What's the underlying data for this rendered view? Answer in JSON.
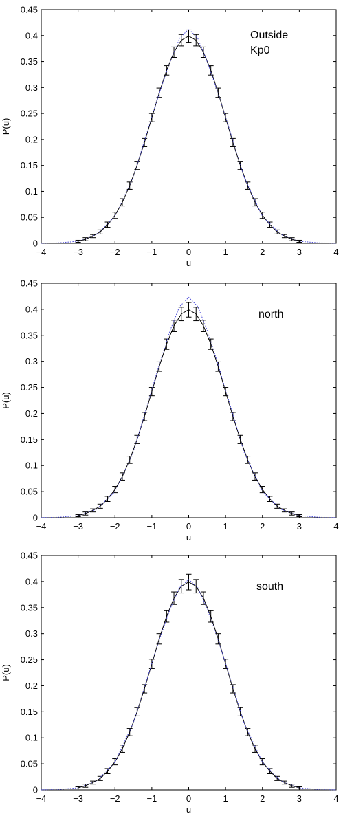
{
  "chart_data": [
    {
      "type": "line",
      "xlabel": "u",
      "ylabel": "P(u)",
      "xlim": [
        -4,
        4
      ],
      "ylim": [
        0,
        0.45
      ],
      "xticks": [
        "-4",
        "-3",
        "-2",
        "-1",
        "0",
        "1",
        "2",
        "3",
        "4"
      ],
      "yticks": [
        "0",
        "0.05",
        "0.1",
        "0.15",
        "0.2",
        "0.25",
        "0.3",
        "0.35",
        "0.4",
        "0.45"
      ],
      "annotation": [
        "Outside",
        "Kp0"
      ],
      "grid": false,
      "series": [
        {
          "style": "solid-with-errorbars",
          "x": [
            -3,
            -2.8,
            -2.6,
            -2.4,
            -2.2,
            -2,
            -1.8,
            -1.6,
            -1.4,
            -1.2,
            -1,
            -0.8,
            -0.6,
            -0.4,
            -0.2,
            0,
            0.2,
            0.4,
            0.6,
            0.8,
            1,
            1.2,
            1.4,
            1.6,
            1.8,
            2,
            2.2,
            2.4,
            2.6,
            2.8,
            3
          ],
          "y": [
            0.004,
            0.008,
            0.014,
            0.022,
            0.036,
            0.054,
            0.079,
            0.111,
            0.15,
            0.194,
            0.242,
            0.29,
            0.333,
            0.368,
            0.391,
            0.399,
            0.391,
            0.368,
            0.333,
            0.29,
            0.242,
            0.194,
            0.15,
            0.111,
            0.079,
            0.054,
            0.036,
            0.022,
            0.014,
            0.008,
            0.004
          ],
          "err": [
            0.002,
            0.003,
            0.003,
            0.004,
            0.005,
            0.006,
            0.007,
            0.007,
            0.008,
            0.008,
            0.008,
            0.009,
            0.009,
            0.01,
            0.011,
            0.012,
            0.011,
            0.01,
            0.009,
            0.009,
            0.008,
            0.008,
            0.008,
            0.007,
            0.007,
            0.006,
            0.005,
            0.004,
            0.003,
            0.003,
            0.002
          ]
        },
        {
          "style": "dotted",
          "x": [
            -4,
            -3.5,
            -3,
            -2.5,
            -2,
            -1.5,
            -1,
            -0.75,
            -0.5,
            -0.25,
            0,
            0.25,
            0.5,
            0.75,
            1,
            1.5,
            2,
            2.5,
            3,
            3.5,
            4
          ],
          "y": [
            0.0001,
            0.001,
            0.004,
            0.017,
            0.052,
            0.128,
            0.244,
            0.299,
            0.35,
            0.394,
            0.413,
            0.394,
            0.35,
            0.299,
            0.244,
            0.128,
            0.052,
            0.017,
            0.004,
            0.001,
            0.0001
          ]
        }
      ]
    },
    {
      "type": "line",
      "xlabel": "u",
      "ylabel": "P(u)",
      "xlim": [
        -4,
        4
      ],
      "ylim": [
        0,
        0.45
      ],
      "xticks": [
        "-4",
        "-3",
        "-2",
        "-1",
        "0",
        "1",
        "2",
        "3",
        "4"
      ],
      "yticks": [
        "0",
        "0.05",
        "0.1",
        "0.15",
        "0.2",
        "0.25",
        "0.3",
        "0.35",
        "0.4",
        "0.45"
      ],
      "annotation": [
        "north"
      ],
      "grid": false,
      "series": [
        {
          "style": "solid-with-errorbars",
          "x": [
            -3,
            -2.8,
            -2.6,
            -2.4,
            -2.2,
            -2,
            -1.8,
            -1.6,
            -1.4,
            -1.2,
            -1,
            -0.8,
            -0.6,
            -0.4,
            -0.2,
            0,
            0.2,
            0.4,
            0.6,
            0.8,
            1,
            1.2,
            1.4,
            1.6,
            1.8,
            2,
            2.2,
            2.4,
            2.6,
            2.8,
            3
          ],
          "y": [
            0.004,
            0.008,
            0.014,
            0.022,
            0.036,
            0.054,
            0.079,
            0.111,
            0.15,
            0.194,
            0.242,
            0.29,
            0.333,
            0.368,
            0.391,
            0.399,
            0.391,
            0.368,
            0.333,
            0.29,
            0.242,
            0.194,
            0.15,
            0.111,
            0.079,
            0.054,
            0.036,
            0.022,
            0.014,
            0.008,
            0.004
          ],
          "err": [
            0.002,
            0.003,
            0.003,
            0.004,
            0.005,
            0.006,
            0.007,
            0.007,
            0.008,
            0.008,
            0.008,
            0.009,
            0.01,
            0.011,
            0.013,
            0.014,
            0.013,
            0.011,
            0.01,
            0.009,
            0.008,
            0.008,
            0.008,
            0.007,
            0.007,
            0.006,
            0.005,
            0.004,
            0.003,
            0.003,
            0.002
          ]
        },
        {
          "style": "dotted",
          "x": [
            -4,
            -3.5,
            -3,
            -2.5,
            -2,
            -1.5,
            -1,
            -0.75,
            -0.5,
            -0.25,
            0,
            0.25,
            0.5,
            0.75,
            1,
            1.5,
            2,
            2.5,
            3,
            3.5,
            4
          ],
          "y": [
            0.0001,
            0.001,
            0.004,
            0.016,
            0.05,
            0.126,
            0.246,
            0.305,
            0.36,
            0.405,
            0.423,
            0.405,
            0.36,
            0.305,
            0.246,
            0.126,
            0.05,
            0.016,
            0.004,
            0.001,
            0.0001
          ]
        }
      ]
    },
    {
      "type": "line",
      "xlabel": "u",
      "ylabel": "P(u)",
      "xlim": [
        -4,
        4
      ],
      "ylim": [
        0,
        0.45
      ],
      "xticks": [
        "-4",
        "-3",
        "-2",
        "-1",
        "0",
        "1",
        "2",
        "3",
        "4"
      ],
      "yticks": [
        "0",
        "0.05",
        "0.1",
        "0.15",
        "0.2",
        "0.25",
        "0.3",
        "0.35",
        "0.4",
        "0.45"
      ],
      "annotation": [
        "south"
      ],
      "grid": false,
      "series": [
        {
          "style": "solid-with-errorbars",
          "x": [
            -3,
            -2.8,
            -2.6,
            -2.4,
            -2.2,
            -2,
            -1.8,
            -1.6,
            -1.4,
            -1.2,
            -1,
            -0.8,
            -0.6,
            -0.4,
            -0.2,
            0,
            0.2,
            0.4,
            0.6,
            0.8,
            1,
            1.2,
            1.4,
            1.6,
            1.8,
            2,
            2.2,
            2.4,
            2.6,
            2.8,
            3
          ],
          "y": [
            0.004,
            0.008,
            0.014,
            0.022,
            0.036,
            0.054,
            0.079,
            0.111,
            0.15,
            0.194,
            0.242,
            0.29,
            0.333,
            0.368,
            0.391,
            0.399,
            0.391,
            0.368,
            0.333,
            0.29,
            0.242,
            0.194,
            0.15,
            0.111,
            0.079,
            0.054,
            0.036,
            0.022,
            0.014,
            0.008,
            0.004
          ],
          "err": [
            0.002,
            0.003,
            0.003,
            0.004,
            0.005,
            0.006,
            0.007,
            0.007,
            0.008,
            0.008,
            0.009,
            0.01,
            0.011,
            0.012,
            0.013,
            0.015,
            0.013,
            0.012,
            0.011,
            0.01,
            0.009,
            0.008,
            0.008,
            0.007,
            0.007,
            0.006,
            0.005,
            0.004,
            0.003,
            0.003,
            0.002
          ]
        },
        {
          "style": "dotted",
          "x": [
            -4,
            -3.5,
            -3,
            -2.5,
            -2,
            -1.5,
            -1,
            -0.75,
            -0.5,
            -0.25,
            0,
            0.25,
            0.5,
            0.75,
            1,
            1.5,
            2,
            2.5,
            3,
            3.5,
            4
          ],
          "y": [
            0.0001,
            0.001,
            0.004,
            0.017,
            0.053,
            0.129,
            0.243,
            0.298,
            0.348,
            0.388,
            0.404,
            0.388,
            0.348,
            0.298,
            0.243,
            0.129,
            0.053,
            0.017,
            0.004,
            0.001,
            0.0001
          ]
        }
      ]
    }
  ],
  "colors": {
    "main_line": "#000000",
    "reference_line": "#4a4ad8",
    "background": "#ffffff"
  }
}
